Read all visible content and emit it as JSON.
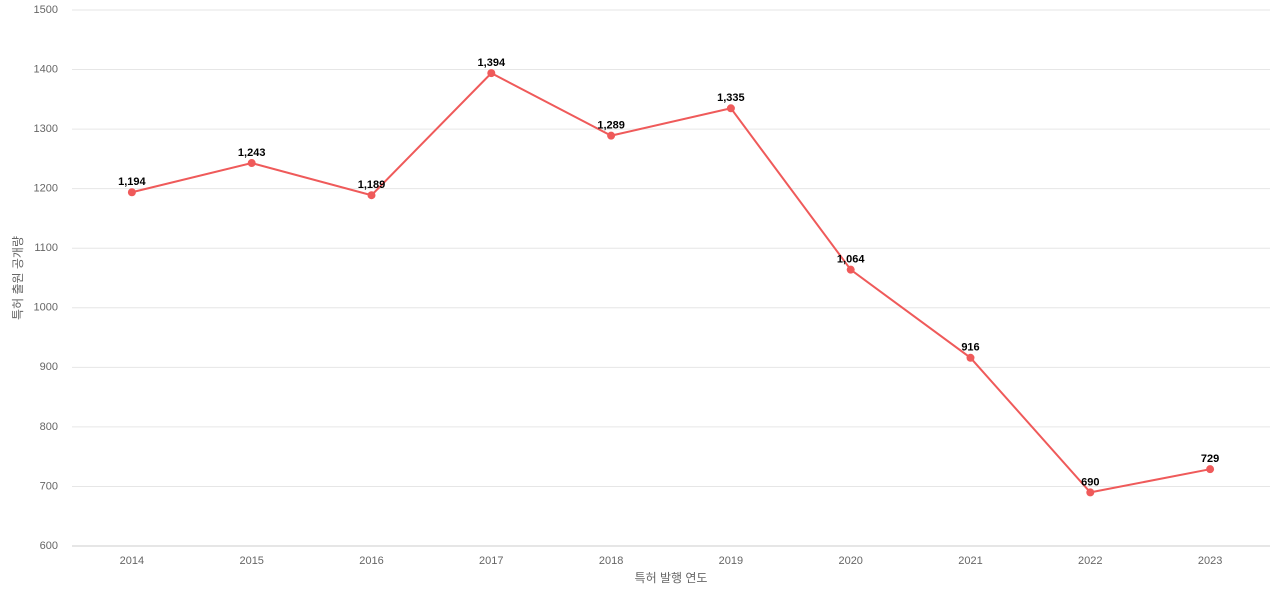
{
  "chart_data": {
    "type": "line",
    "x_label": "특허 발행 연도",
    "y_label": "특허 출원 공개량",
    "categories": [
      "2014",
      "2015",
      "2016",
      "2017",
      "2018",
      "2019",
      "2020",
      "2021",
      "2022",
      "2023"
    ],
    "series": [
      {
        "color": "#ef5a5a",
        "values": [
          1194,
          1243,
          1189,
          1394,
          1289,
          1335,
          1064,
          916,
          690,
          729
        ],
        "value_labels": [
          "1,194",
          "1,243",
          "1,189",
          "1,394",
          "1,289",
          "1,335",
          "1,064",
          "916",
          "690",
          "729"
        ]
      }
    ],
    "ylim": [
      600,
      1500
    ],
    "yticks": [
      600,
      700,
      800,
      900,
      1000,
      1100,
      1200,
      1300,
      1400,
      1500
    ],
    "grid": true
  }
}
